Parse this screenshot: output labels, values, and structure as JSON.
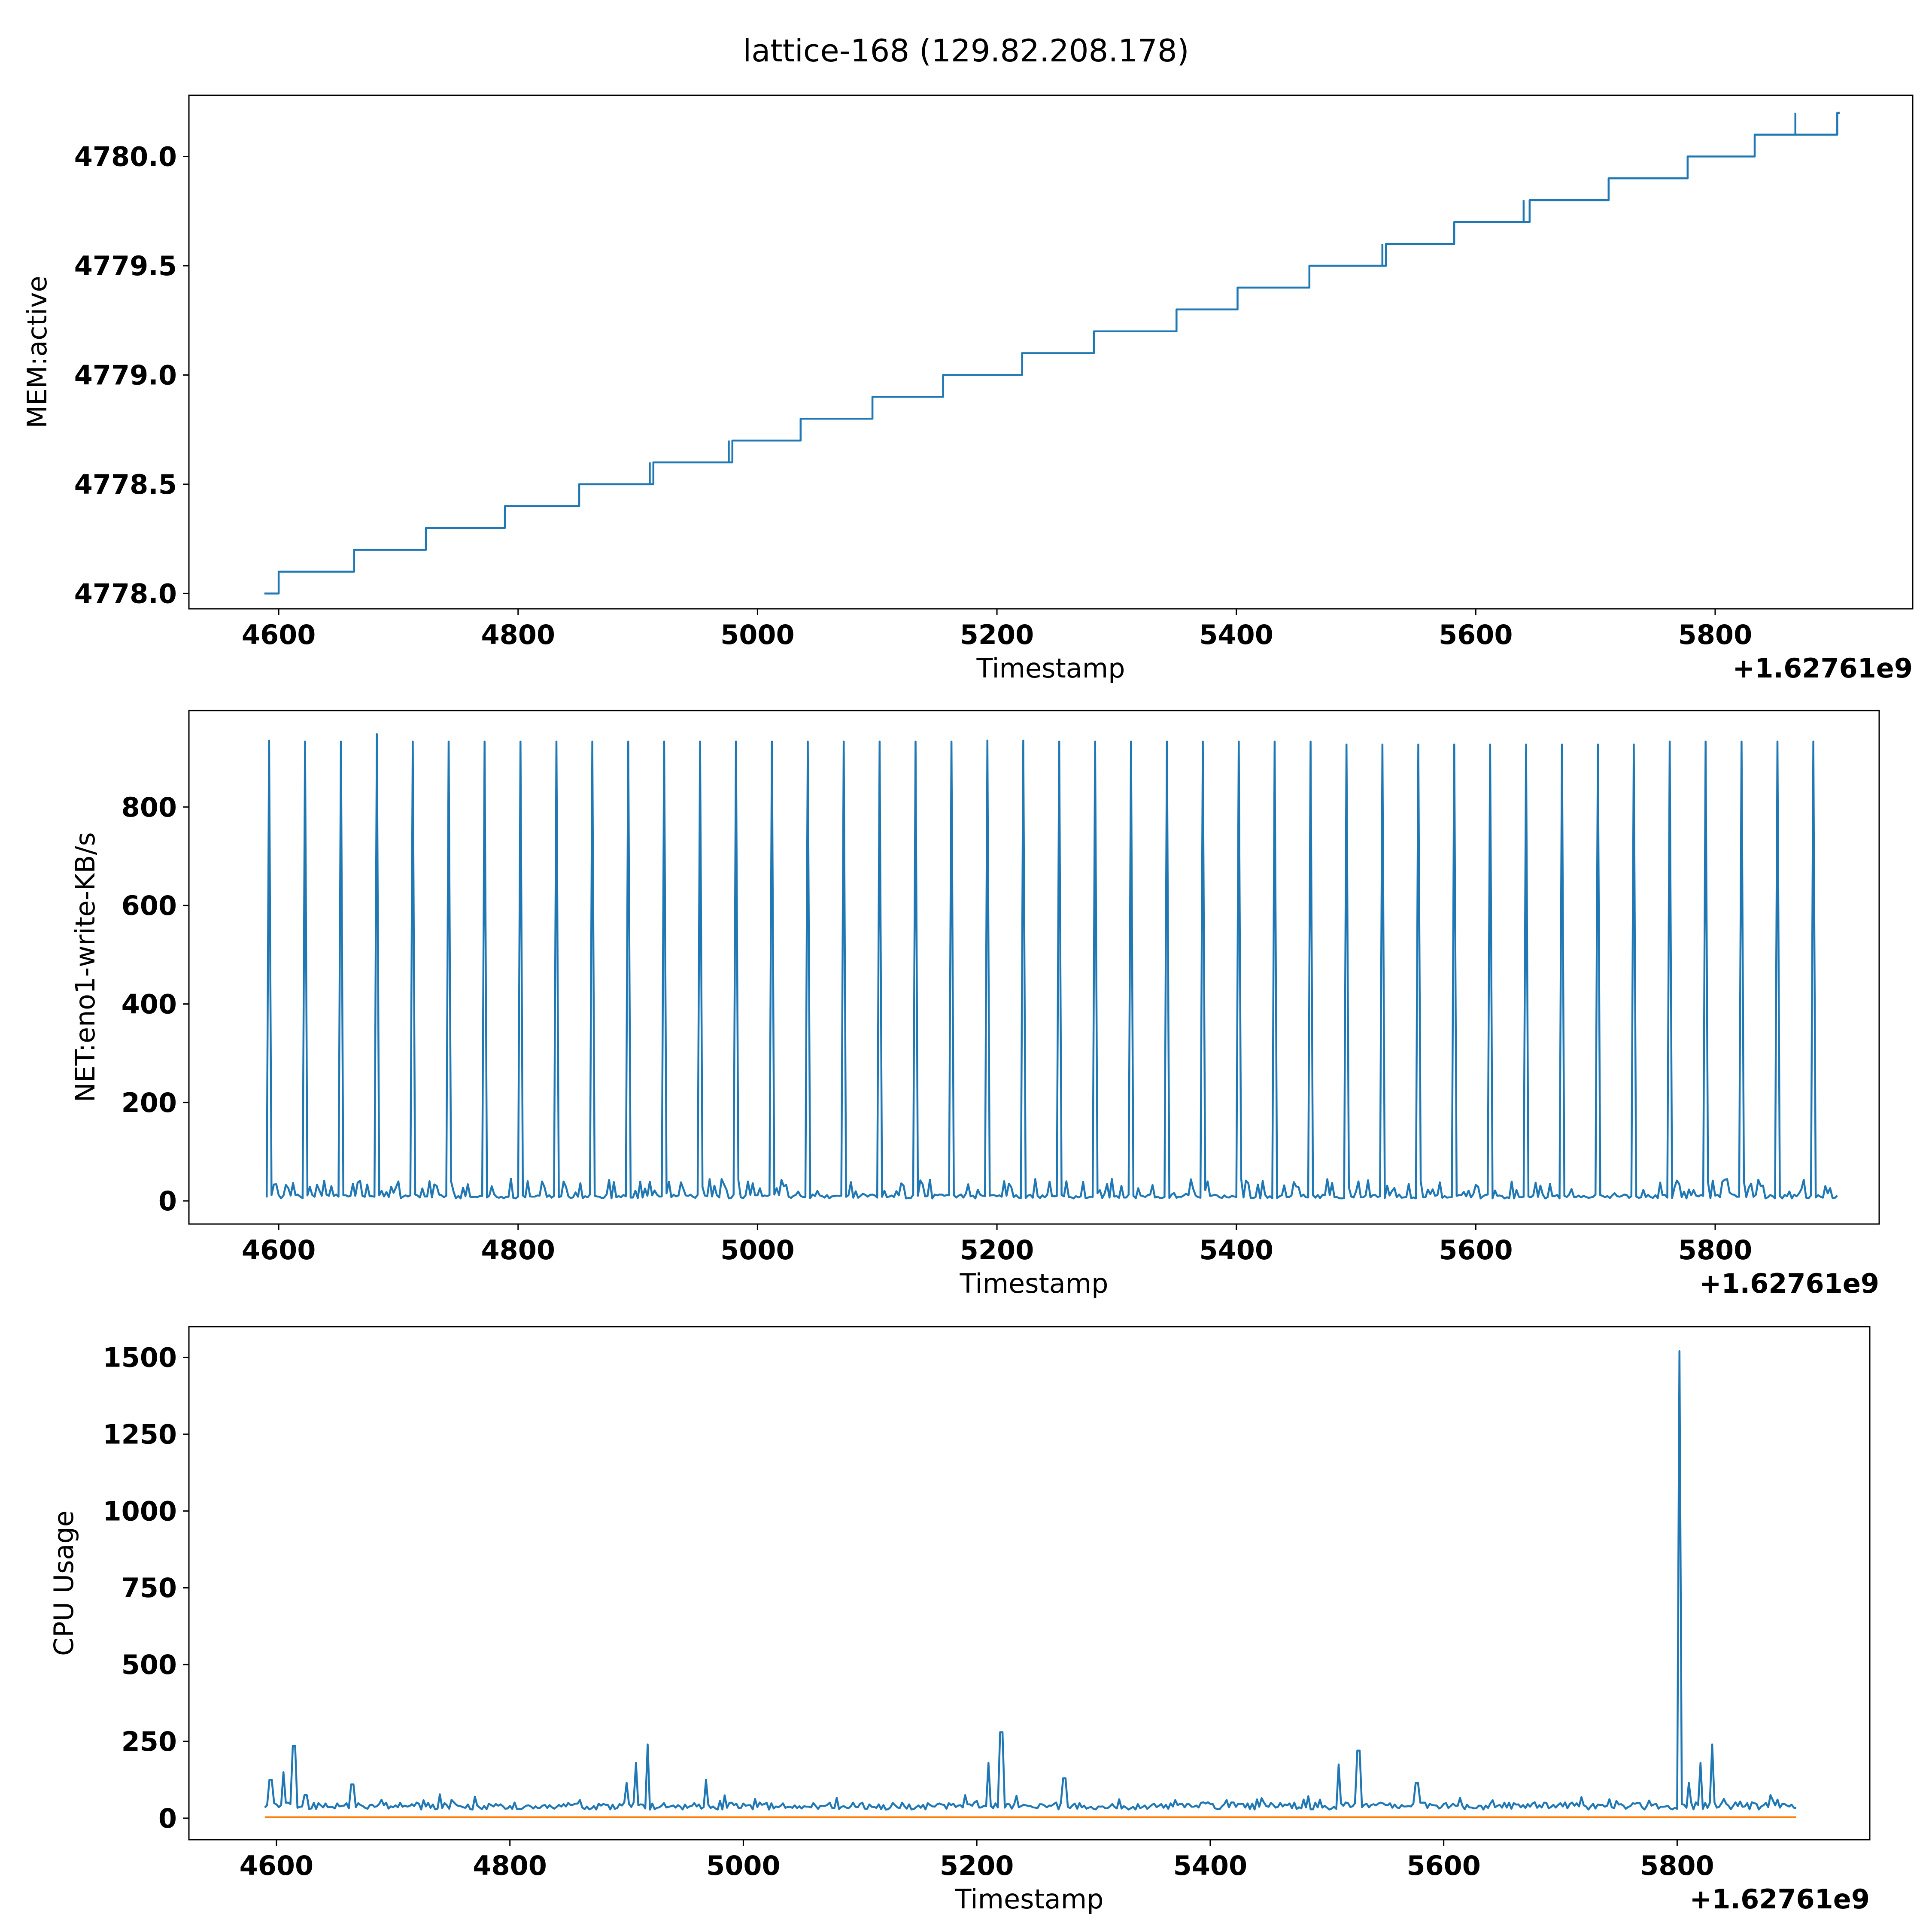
{
  "figure": {
    "title": "lattice-168 (129.82.208.178)"
  },
  "colors": {
    "primary": "#1f77b4",
    "secondary": "#ff7f0e"
  },
  "chart_data": [
    {
      "type": "line",
      "id": "mem",
      "xlabel": "Timestamp",
      "ylabel": "MEM:active",
      "x_offset_label": "+1.62761e9",
      "xlim": [
        4525,
        5965
      ],
      "ylim": [
        4777.93,
        4780.28
      ],
      "x_ticks": [
        4600,
        4800,
        5000,
        5200,
        5400,
        5600,
        5800
      ],
      "x_tick_labels": [
        "4600",
        "4800",
        "5000",
        "5200",
        "5400",
        "5600",
        "5800"
      ],
      "y_ticks": [
        4778.0,
        4778.5,
        4779.0,
        4779.5,
        4780.0
      ],
      "y_tick_labels": [
        "4778.0",
        "4778.5",
        "4779.0",
        "4779.5",
        "4780.0"
      ],
      "series": [
        {
          "color": "#1f77b4",
          "step_points": [
            [
              4588,
              4778.0
            ],
            [
              4600,
              4778.1
            ],
            [
              4663,
              4778.2
            ],
            [
              4723,
              4778.3
            ],
            [
              4789,
              4778.4
            ],
            [
              4851,
              4778.5
            ],
            [
              4913,
              4778.6
            ],
            [
              4979,
              4778.7
            ],
            [
              5036,
              4778.8
            ],
            [
              5096,
              4778.9
            ],
            [
              5155,
              4779.0
            ],
            [
              5221,
              4779.1
            ],
            [
              5281,
              4779.2
            ],
            [
              5350,
              4779.3
            ],
            [
              5401,
              4779.4
            ],
            [
              5461,
              4779.5
            ],
            [
              5525,
              4779.6
            ],
            [
              5582,
              4779.7
            ],
            [
              5645,
              4779.8
            ],
            [
              5711,
              4779.9
            ],
            [
              5777,
              4780.0
            ],
            [
              5833,
              4780.1
            ],
            [
              5902,
              4780.2
            ]
          ],
          "end_x": 5904,
          "spikes": [
            [
              4910,
              4778.6
            ],
            [
              4976,
              4778.7
            ],
            [
              5522,
              4779.6
            ],
            [
              5640,
              4779.8
            ],
            [
              5867,
              4780.2
            ]
          ]
        }
      ]
    },
    {
      "type": "line",
      "id": "net",
      "xlabel": "Timestamp",
      "ylabel": "NET:eno1-write-KB/s",
      "x_offset_label": "+1.62761e9",
      "xlim": [
        4525,
        5937
      ],
      "ylim": [
        -47,
        996
      ],
      "x_ticks": [
        4600,
        4800,
        5000,
        5200,
        5400,
        5600,
        5800
      ],
      "x_tick_labels": [
        "4600",
        "4800",
        "5000",
        "5200",
        "5400",
        "5600",
        "5800"
      ],
      "y_ticks": [
        0,
        200,
        400,
        600,
        800
      ],
      "y_tick_labels": [
        "0",
        "200",
        "400",
        "600",
        "800"
      ],
      "series": [
        {
          "color": "#1f77b4",
          "x_range": [
            4590,
            5902
          ],
          "baseline": 5,
          "noise_max": 40,
          "spike_x": [
            4592,
            4622,
            4652,
            4682,
            4712,
            4742,
            4772,
            4802,
            4832,
            4862,
            4892,
            4922,
            4952,
            4982,
            5012,
            5042,
            5072,
            5102,
            5132,
            5162,
            5192,
            5222,
            5252,
            5282,
            5312,
            5342,
            5372,
            5402,
            5432,
            5462,
            5492,
            5522,
            5552,
            5582,
            5612,
            5642,
            5672,
            5702,
            5732,
            5762,
            5792,
            5822,
            5852,
            5882
          ],
          "spike_values": [
            935,
            933,
            933,
            948,
            933,
            933,
            933,
            933,
            933,
            933,
            933,
            933,
            933,
            933,
            933,
            933,
            933,
            933,
            933,
            933,
            935,
            935,
            933,
            933,
            933,
            933,
            933,
            933,
            933,
            933,
            927,
            927,
            927,
            927,
            927,
            927,
            927,
            927,
            927,
            933,
            933,
            933,
            933,
            933
          ]
        }
      ]
    },
    {
      "type": "line",
      "id": "cpu",
      "xlabel": "Timestamp",
      "ylabel": "CPU Usage",
      "x_offset_label": "+1.62761e9",
      "xlim": [
        4525,
        5965
      ],
      "ylim": [
        -70,
        1600
      ],
      "x_ticks": [
        4600,
        4800,
        5000,
        5200,
        5400,
        5600,
        5800
      ],
      "x_tick_labels": [
        "4600",
        "4800",
        "5000",
        "5200",
        "5400",
        "5600",
        "5800"
      ],
      "y_ticks": [
        0,
        250,
        500,
        750,
        1000,
        1250,
        1500
      ],
      "y_tick_labels": [
        "0",
        "250",
        "500",
        "750",
        "1000",
        "1250",
        "1500"
      ],
      "series": [
        {
          "color": "#1f77b4",
          "x_range": [
            4590,
            5902
          ],
          "baseline": 40,
          "noise": 12,
          "peaks": [
            [
              4595,
              125
            ],
            [
              4606,
              150
            ],
            [
              4615,
              235
            ],
            [
              4625,
              75
            ],
            [
              4665,
              110
            ],
            [
              4690,
              60
            ],
            [
              4770,
              70
            ],
            [
              4900,
              115
            ],
            [
              4908,
              180
            ],
            [
              4918,
              240
            ],
            [
              4968,
              125
            ],
            [
              5190,
              75
            ],
            [
              5210,
              180
            ],
            [
              5221,
              280
            ],
            [
              5275,
              130
            ],
            [
              5510,
              175
            ],
            [
              5527,
              220
            ],
            [
              5577,
              115
            ],
            [
              5802,
              1520
            ],
            [
              5810,
              115
            ],
            [
              5820,
              180
            ],
            [
              5830,
              240
            ],
            [
              5880,
              75
            ]
          ]
        },
        {
          "color": "#ff7f0e",
          "x_range": [
            4590,
            5902
          ],
          "constant": 3
        }
      ]
    }
  ]
}
